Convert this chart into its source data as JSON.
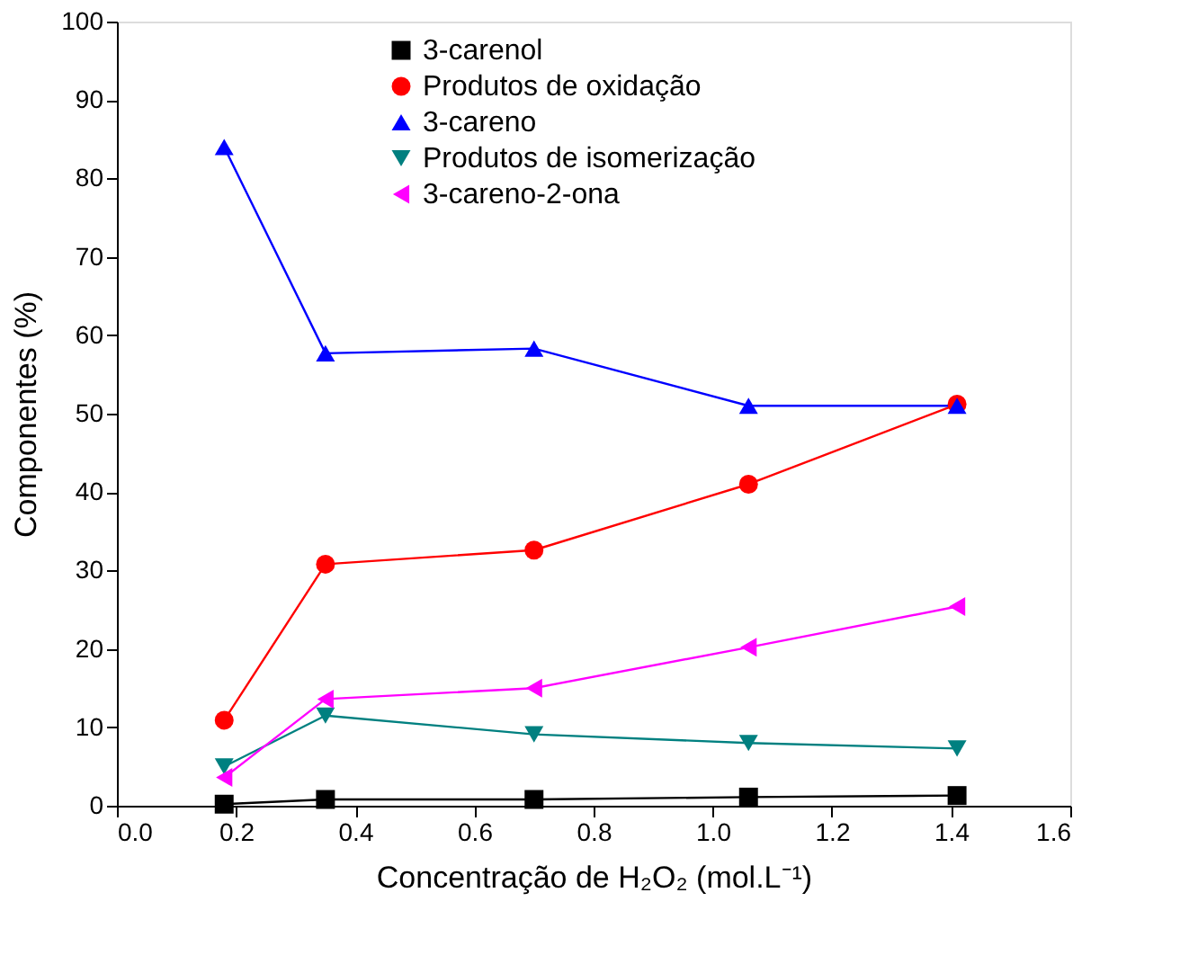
{
  "chart_data": {
    "type": "line",
    "xlabel": "Concentração de H₂O₂ (mol.L⁻¹)",
    "ylabel": "Componentes (%)",
    "x": [
      0.18,
      0.35,
      0.7,
      1.06,
      1.41
    ],
    "xlim": [
      0.0,
      1.6
    ],
    "xticks": [
      {
        "value": 0,
        "label": "0.0"
      },
      0.2,
      0.4,
      0.6,
      0.8,
      {
        "value": 1,
        "label": "1.0"
      },
      1.2,
      1.4,
      1.6
    ],
    "ylim": [
      0,
      100
    ],
    "yticks": [
      0,
      10,
      20,
      30,
      40,
      50,
      60,
      70,
      80,
      90,
      100
    ],
    "grid": false,
    "legend": "top",
    "line_style": "solid",
    "series": [
      {
        "name": "3-carenol",
        "color": "#000000",
        "marker": "square",
        "values": [
          0.2,
          0.8,
          0.8,
          1.1,
          1.3
        ]
      },
      {
        "name": "Produtos de oxidação",
        "color": "#ff0000",
        "marker": "circle",
        "values": [
          10.9,
          30.8,
          32.6,
          41.0,
          51.2
        ]
      },
      {
        "name": "3-careno",
        "color": "#0000ff",
        "marker": "triangle",
        "values": [
          84.0,
          57.7,
          58.3,
          51.0,
          51.0
        ]
      },
      {
        "name": " Produtos de isomerização",
        "color": "#008080",
        "marker": "triangle-down",
        "values": [
          5.0,
          11.5,
          9.1,
          8.0,
          7.3
        ]
      },
      {
        "name": "3-careno-2-ona",
        "color": "#ff00ff",
        "marker": "triangle-left",
        "values": [
          3.6,
          13.6,
          15.0,
          20.2,
          25.4
        ]
      }
    ]
  }
}
